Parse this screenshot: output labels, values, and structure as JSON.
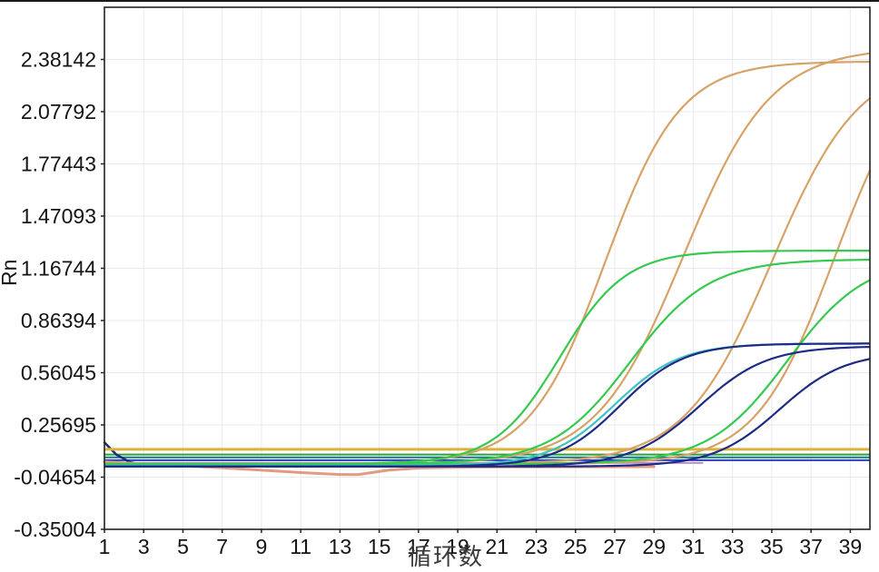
{
  "chart_data": {
    "type": "line",
    "title": "",
    "xlabel": "循环数",
    "ylabel": "Rn",
    "legend": "none",
    "grid": "on",
    "x_range": [
      1,
      40
    ],
    "y_range": [
      -0.35004,
      2.68492
    ],
    "x_tick_labels": [
      "1",
      "3",
      "5",
      "7",
      "9",
      "11",
      "13",
      "15",
      "17",
      "19",
      "21",
      "23",
      "25",
      "27",
      "29",
      "31",
      "33",
      "35",
      "37",
      "39"
    ],
    "x_tick_values": [
      1,
      3,
      5,
      7,
      9,
      11,
      13,
      15,
      17,
      19,
      21,
      23,
      25,
      27,
      29,
      31,
      33,
      35,
      37,
      39
    ],
    "y_tick_labels": [
      "2.38142",
      "2.07792",
      "1.77443",
      "1.47093",
      "1.16744",
      "0.86394",
      "0.56045",
      "0.25695",
      "-0.04654",
      "-0.35004"
    ],
    "y_tick_values": [
      2.38142,
      2.07792,
      1.77443,
      1.47093,
      1.16744,
      0.86394,
      0.56045,
      0.25695,
      -0.04654,
      -0.35004
    ],
    "threshold_line": {
      "name": "threshold-line",
      "value": 0.115,
      "color": "#ddb23c",
      "width": 3
    },
    "amplification_curves": [
      {
        "name": "orange-curve-1",
        "color": "#d7a266",
        "baseline": 0.03,
        "amplitude": 2.34,
        "midpoint_cycle": 26.5,
        "slope": 0.52,
        "approx_ct": 23.5,
        "plateau_rn": 2.37
      },
      {
        "name": "orange-curve-2",
        "color": "#d7a266",
        "baseline": 0.03,
        "amplitude": 2.42,
        "midpoint_cycle": 30.5,
        "slope": 0.45,
        "approx_ct": 27.0,
        "plateau_rn": 2.45
      },
      {
        "name": "orange-curve-3",
        "color": "#d7a266",
        "baseline": 0.03,
        "amplitude": 2.35,
        "midpoint_cycle": 35.0,
        "slope": 0.45,
        "approx_ct": 31.5,
        "end_rn_at_cycle40": 2.17
      },
      {
        "name": "orange-curve-4",
        "color": "#d7a266",
        "baseline": 0.03,
        "amplitude": 2.4,
        "midpoint_cycle": 38.2,
        "slope": 0.5,
        "approx_ct": 34.8,
        "end_rn_at_cycle40": 1.75
      },
      {
        "name": "green-curve-1",
        "color": "#36c94f",
        "baseline": 0.03,
        "amplitude": 1.24,
        "midpoint_cycle": 24.2,
        "slope": 0.6,
        "approx_ct": 22.0,
        "plateau_rn": 1.27
      },
      {
        "name": "green-curve-2",
        "color": "#36c94f",
        "baseline": 0.03,
        "amplitude": 1.19,
        "midpoint_cycle": 27.8,
        "slope": 0.5,
        "approx_ct": 25.0,
        "plateau_rn": 1.22
      },
      {
        "name": "green-curve-3",
        "color": "#36c94f",
        "baseline": 0.03,
        "amplitude": 1.2,
        "midpoint_cycle": 35.8,
        "slope": 0.5,
        "approx_ct": 32.5,
        "end_rn_at_cycle40": 1.1
      },
      {
        "name": "cyan-curve-1",
        "color": "#3cc4c4",
        "baseline": 0.02,
        "amplitude": 0.71,
        "midpoint_cycle": 27.0,
        "slope": 0.6,
        "approx_ct": 25.3,
        "plateau_rn": 0.73
      },
      {
        "name": "navy-curve-1",
        "color": "#1e2b86",
        "baseline": 0.015,
        "amplitude": 0.715,
        "midpoint_cycle": 27.3,
        "slope": 0.62,
        "approx_ct": 25.5,
        "plateau_rn": 0.73
      },
      {
        "name": "navy-curve-2",
        "color": "#1e2b86",
        "baseline": 0.015,
        "amplitude": 0.7,
        "midpoint_cycle": 31.3,
        "slope": 0.58,
        "approx_ct": 29.5,
        "plateau_rn": 0.715
      },
      {
        "name": "navy-curve-3",
        "color": "#1e2b86",
        "baseline": 0.015,
        "amplitude": 0.665,
        "midpoint_cycle": 35.4,
        "slope": 0.6,
        "approx_ct": 33.5,
        "end_rn_at_cycle40": 0.66
      }
    ],
    "baseline_flat_lines": [
      {
        "name": "flat-green-line",
        "color": "#2f9e44",
        "rn": 0.085,
        "from_cycle": 1,
        "to_cycle": 40,
        "width": 2
      },
      {
        "name": "flat-teal-line",
        "color": "#157a80",
        "rn": 0.068,
        "from_cycle": 1,
        "to_cycle": 40,
        "width": 2
      },
      {
        "name": "flat-royalblue-line",
        "color": "#2a3fc0",
        "rn": 0.052,
        "from_cycle": 1,
        "to_cycle": 40,
        "width": 2
      },
      {
        "name": "flat-lavender-line",
        "color": "#b58fcf",
        "rn": 0.036,
        "from_cycle": 1,
        "to_cycle": 31.5,
        "width": 2
      }
    ],
    "drift_polylines": [
      {
        "name": "navy-start-dip",
        "color": "#1d2a7a",
        "width": 2.5,
        "points": [
          [
            1,
            0.155
          ],
          [
            1.6,
            0.085
          ],
          [
            2.3,
            0.04
          ],
          [
            3.2,
            0.02
          ],
          [
            5,
            0.016
          ],
          [
            12,
            0.015
          ],
          [
            22,
            0.015
          ]
        ]
      },
      {
        "name": "salmon-drift-dip",
        "color": "#e49a7f",
        "width": 3,
        "points": [
          [
            1,
            0.042
          ],
          [
            3,
            0.03
          ],
          [
            7,
            0.008
          ],
          [
            11,
            -0.02
          ],
          [
            13,
            -0.031
          ],
          [
            13.9,
            -0.032
          ],
          [
            15.5,
            -0.006
          ],
          [
            17,
            0.006
          ],
          [
            20,
            0.012
          ],
          [
            29,
            0.014
          ]
        ]
      }
    ],
    "plot_frame_color": "#222222",
    "gridline_color": "#e9e9f2",
    "tick_label_color": "#141414"
  },
  "page": {
    "top_border_color": "#1a1a1a"
  }
}
